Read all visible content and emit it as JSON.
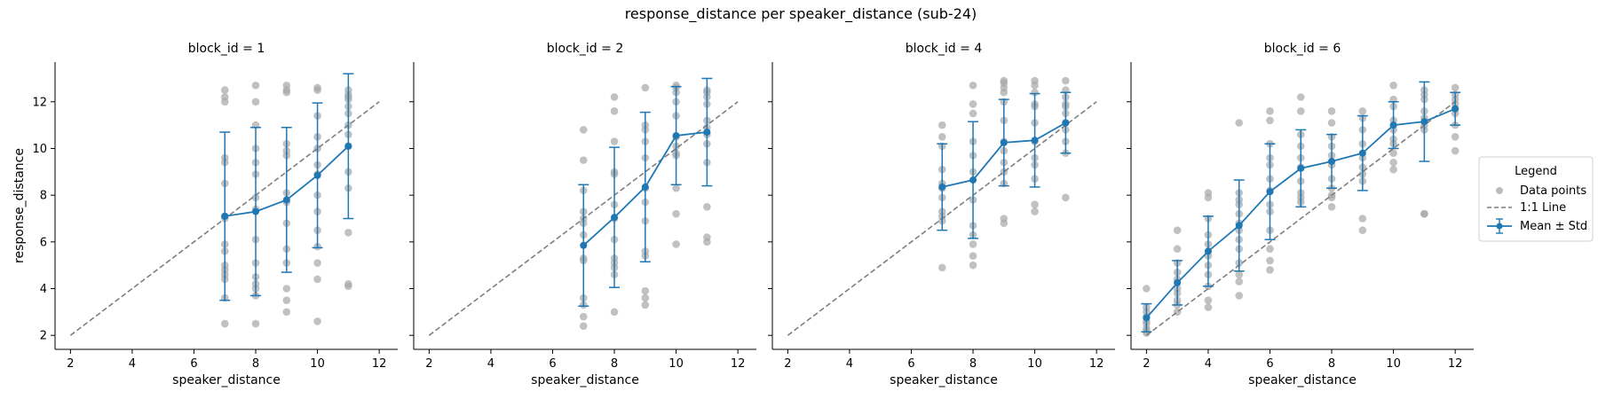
{
  "figure": {
    "title": "response_distance per speaker_distance (sub-24)"
  },
  "legend": {
    "title": "Legend",
    "placement": "right",
    "items": [
      {
        "label": "Data points",
        "kind": "points",
        "color": "#a6a6a6"
      },
      {
        "label": "1:1 Line",
        "kind": "dashed-line",
        "color": "#7f7f7f"
      },
      {
        "label": "Mean ± Std",
        "kind": "errorbar-line",
        "color": "#1f77b4"
      }
    ]
  },
  "chart_data": [
    {
      "type": "scatter",
      "title": "block_id = 1",
      "xlabel": "speaker_distance",
      "ylabel": "response_distance",
      "xlim": [
        1.5,
        12.6
      ],
      "ylim": [
        1.4,
        13.7
      ],
      "xticks": [
        "2",
        "4",
        "6",
        "8",
        "10",
        "12"
      ],
      "yticks": [
        "2",
        "4",
        "6",
        "8",
        "10",
        "12"
      ],
      "identity_line": {
        "x": [
          2,
          12
        ],
        "y": [
          2,
          12
        ]
      },
      "mean_std": [
        {
          "x": 7,
          "mean": 7.1,
          "std": 3.6
        },
        {
          "x": 8,
          "mean": 7.3,
          "std": 3.6
        },
        {
          "x": 9,
          "mean": 7.8,
          "std": 3.1
        },
        {
          "x": 10,
          "mean": 8.85,
          "std": 3.1
        },
        {
          "x": 11,
          "mean": 10.1,
          "std": 3.1
        }
      ],
      "points": [
        {
          "x": 7,
          "ys": [
            12.5,
            12.2,
            12.0,
            9.6,
            9.4,
            8.5,
            7.1,
            7.0,
            5.9,
            5.6,
            5.0,
            4.8,
            4.6,
            4.4,
            3.6,
            2.5
          ]
        },
        {
          "x": 8,
          "ys": [
            12.7,
            12.0,
            11.0,
            10.0,
            9.4,
            8.9,
            7.9,
            7.4,
            6.1,
            5.1,
            4.5,
            4.2,
            4.0,
            3.7,
            2.5
          ]
        },
        {
          "x": 9,
          "ys": [
            12.7,
            12.5,
            12.4,
            10.2,
            9.9,
            9.7,
            8.1,
            7.7,
            6.8,
            5.7,
            5.1,
            4.0,
            3.5,
            3.0
          ]
        },
        {
          "x": 10,
          "ys": [
            12.6,
            12.5,
            11.4,
            10.5,
            10.0,
            9.3,
            8.9,
            8.0,
            7.3,
            6.5,
            5.8,
            5.1,
            4.4,
            2.6
          ]
        },
        {
          "x": 11,
          "ys": [
            12.5,
            12.3,
            12.2,
            12.1,
            11.8,
            11.5,
            11.0,
            10.6,
            10.1,
            9.0,
            8.3,
            6.4,
            4.2,
            4.1
          ]
        }
      ]
    },
    {
      "type": "scatter",
      "title": "block_id = 2",
      "xlabel": "speaker_distance",
      "ylabel": "",
      "xlim": [
        1.5,
        12.6
      ],
      "ylim": [
        1.4,
        13.7
      ],
      "xticks": [
        "2",
        "4",
        "6",
        "8",
        "10",
        "12"
      ],
      "yticks": [],
      "identity_line": {
        "x": [
          2,
          12
        ],
        "y": [
          2,
          12
        ]
      },
      "mean_std": [
        {
          "x": 7,
          "mean": 5.85,
          "std": 2.6
        },
        {
          "x": 8,
          "mean": 7.05,
          "std": 3.0
        },
        {
          "x": 9,
          "mean": 8.35,
          "std": 3.2
        },
        {
          "x": 10,
          "mean": 10.55,
          "std": 2.1
        },
        {
          "x": 11,
          "mean": 10.7,
          "std": 2.3
        }
      ],
      "points": [
        {
          "x": 7,
          "ys": [
            10.8,
            9.5,
            8.2,
            7.3,
            7.0,
            6.8,
            6.3,
            5.3,
            5.2,
            3.6,
            3.3,
            2.8,
            2.4
          ]
        },
        {
          "x": 8,
          "ys": [
            12.2,
            11.6,
            10.3,
            9.0,
            8.9,
            7.6,
            7.0,
            6.1,
            5.3,
            5.1,
            4.9,
            4.6,
            3.0
          ]
        },
        {
          "x": 9,
          "ys": [
            12.6,
            11.0,
            10.8,
            10.3,
            9.6,
            8.3,
            7.7,
            6.9,
            5.6,
            5.4,
            3.9,
            3.6,
            3.3
          ]
        },
        {
          "x": 10,
          "ys": [
            12.7,
            12.6,
            12.4,
            12.0,
            11.4,
            10.5,
            10.1,
            9.8,
            9.7,
            8.3,
            7.2,
            5.9
          ]
        },
        {
          "x": 11,
          "ys": [
            12.5,
            12.4,
            12.2,
            11.9,
            11.2,
            10.9,
            10.6,
            10.2,
            9.4,
            7.5,
            6.2,
            6.0
          ]
        }
      ]
    },
    {
      "type": "scatter",
      "title": "block_id = 4",
      "xlabel": "speaker_distance",
      "ylabel": "",
      "xlim": [
        1.5,
        12.6
      ],
      "ylim": [
        1.4,
        13.7
      ],
      "xticks": [
        "2",
        "4",
        "6",
        "8",
        "10",
        "12"
      ],
      "yticks": [],
      "identity_line": {
        "x": [
          2,
          12
        ],
        "y": [
          2,
          12
        ]
      },
      "mean_std": [
        {
          "x": 7,
          "mean": 8.35,
          "std": 1.85
        },
        {
          "x": 8,
          "mean": 8.65,
          "std": 2.5
        },
        {
          "x": 9,
          "mean": 10.25,
          "std": 1.85
        },
        {
          "x": 10,
          "mean": 10.35,
          "std": 2.0
        },
        {
          "x": 11,
          "mean": 11.1,
          "std": 1.3
        }
      ],
      "points": [
        {
          "x": 7,
          "ys": [
            11.0,
            10.5,
            10.1,
            9.1,
            8.5,
            8.3,
            7.9,
            7.3,
            7.1,
            6.9,
            4.9
          ]
        },
        {
          "x": 8,
          "ys": [
            12.7,
            11.9,
            11.5,
            10.3,
            9.7,
            9.0,
            7.8,
            6.7,
            6.3,
            5.9,
            5.4,
            5.0
          ]
        },
        {
          "x": 9,
          "ys": [
            12.9,
            12.8,
            12.6,
            12.4,
            12.0,
            11.2,
            10.3,
            9.9,
            9.4,
            9.0,
            8.5,
            7.0,
            6.8
          ]
        },
        {
          "x": 10,
          "ys": [
            12.9,
            12.7,
            12.4,
            11.9,
            11.8,
            11.1,
            10.3,
            9.6,
            9.3,
            8.7,
            7.6,
            7.3
          ]
        },
        {
          "x": 11,
          "ys": [
            12.9,
            12.5,
            12.2,
            11.9,
            11.8,
            11.5,
            11.1,
            10.8,
            10.3,
            9.8,
            7.9
          ]
        }
      ]
    },
    {
      "type": "scatter",
      "title": "block_id = 6",
      "xlabel": "speaker_distance",
      "ylabel": "",
      "xlim": [
        1.5,
        12.6
      ],
      "ylim": [
        1.4,
        13.7
      ],
      "xticks": [
        "2",
        "4",
        "6",
        "8",
        "10",
        "12"
      ],
      "yticks": [],
      "identity_line": {
        "x": [
          2,
          12
        ],
        "y": [
          2,
          12
        ]
      },
      "mean_std": [
        {
          "x": 2,
          "mean": 2.75,
          "std": 0.6
        },
        {
          "x": 3,
          "mean": 4.25,
          "std": 0.95
        },
        {
          "x": 4,
          "mean": 5.6,
          "std": 1.5
        },
        {
          "x": 5,
          "mean": 6.7,
          "std": 1.95
        },
        {
          "x": 6,
          "mean": 8.15,
          "std": 2.05
        },
        {
          "x": 7,
          "mean": 9.15,
          "std": 1.65
        },
        {
          "x": 8,
          "mean": 9.45,
          "std": 1.15
        },
        {
          "x": 9,
          "mean": 9.8,
          "std": 1.6
        },
        {
          "x": 10,
          "mean": 11.0,
          "std": 1.0
        },
        {
          "x": 11,
          "mean": 11.15,
          "std": 1.7
        },
        {
          "x": 12,
          "mean": 11.7,
          "std": 0.7
        }
      ],
      "points": [
        {
          "x": 2,
          "ys": [
            4.0,
            3.2,
            3.0,
            2.8,
            2.6,
            2.5,
            2.3,
            2.2,
            2.1
          ]
        },
        {
          "x": 3,
          "ys": [
            6.5,
            5.7,
            5.1,
            4.7,
            4.4,
            4.0,
            3.8,
            3.5,
            3.3,
            3.0
          ]
        },
        {
          "x": 4,
          "ys": [
            8.1,
            7.9,
            7.0,
            6.3,
            5.9,
            5.4,
            5.0,
            4.6,
            4.1,
            3.5,
            3.2
          ]
        },
        {
          "x": 5,
          "ys": [
            11.1,
            8.1,
            7.8,
            7.6,
            7.2,
            6.8,
            6.5,
            6.1,
            5.7,
            5.1,
            4.6,
            4.3,
            3.7
          ]
        },
        {
          "x": 6,
          "ys": [
            11.6,
            11.2,
            10.2,
            9.6,
            9.3,
            8.7,
            8.2,
            7.6,
            7.3,
            6.5,
            5.7,
            5.2,
            4.8
          ]
        },
        {
          "x": 7,
          "ys": [
            12.2,
            11.6,
            10.6,
            10.1,
            9.6,
            9.2,
            8.6,
            8.1,
            7.9,
            7.7
          ]
        },
        {
          "x": 8,
          "ys": [
            11.6,
            11.1,
            10.5,
            10.1,
            9.7,
            9.3,
            8.7,
            8.3,
            8.0,
            7.9,
            7.5
          ]
        },
        {
          "x": 9,
          "ys": [
            11.6,
            11.3,
            10.8,
            10.2,
            9.6,
            9.2,
            8.9,
            8.6,
            7.0,
            6.5
          ]
        },
        {
          "x": 10,
          "ys": [
            12.7,
            12.1,
            11.8,
            11.2,
            10.8,
            10.4,
            10.2,
            9.8,
            9.4,
            9.1
          ]
        },
        {
          "x": 11,
          "ys": [
            12.5,
            12.3,
            12.1,
            11.6,
            11.3,
            11.0,
            10.8,
            7.2,
            7.2
          ]
        },
        {
          "x": 12,
          "ys": [
            12.6,
            12.3,
            12.1,
            11.9,
            11.7,
            11.5,
            11.0,
            10.5,
            9.9
          ]
        }
      ]
    }
  ]
}
